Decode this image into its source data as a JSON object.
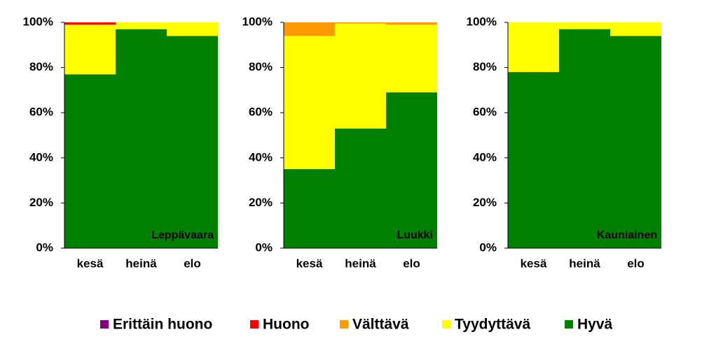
{
  "chart_data": [
    {
      "type": "stacked_bar",
      "label": "Leppävaara",
      "categories": [
        "kesä",
        "heinä",
        "elo"
      ],
      "series": [
        {
          "name": "Erittäin huono",
          "color": "#800080",
          "values": [
            0,
            0,
            0
          ]
        },
        {
          "name": "Huono",
          "color": "#ff0000",
          "values": [
            1,
            0,
            0
          ]
        },
        {
          "name": "Välttävä",
          "color": "#ff9900",
          "values": [
            0,
            0,
            0
          ]
        },
        {
          "name": "Tyydyttävä",
          "color": "#ffff00",
          "values": [
            22,
            3,
            6
          ]
        },
        {
          "name": "Hyvä",
          "color": "#008000",
          "values": [
            77,
            97,
            94
          ]
        }
      ],
      "ylim": [
        0,
        100
      ],
      "yticks": [
        {
          "value": 0,
          "label": "0%"
        },
        {
          "value": 20,
          "label": "20%"
        },
        {
          "value": 40,
          "label": "40%"
        },
        {
          "value": 60,
          "label": "60%"
        },
        {
          "value": 80,
          "label": "80%"
        },
        {
          "value": 100,
          "label": "100%"
        }
      ]
    },
    {
      "type": "stacked_bar",
      "label": "Luukki",
      "categories": [
        "kesä",
        "heinä",
        "elo"
      ],
      "series": [
        {
          "color": "#800080",
          "values": [
            0,
            0,
            0
          ]
        },
        {
          "color": "#ff0000",
          "values": [
            0,
            0,
            0
          ]
        },
        {
          "color": "#ff9900",
          "values": [
            6,
            0.5,
            1
          ]
        },
        {
          "color": "#ffff00",
          "values": [
            59,
            46.5,
            30
          ]
        },
        {
          "color": "#008000",
          "values": [
            35,
            53,
            69
          ]
        }
      ],
      "ylim": [
        0,
        100
      ],
      "yticks": [
        {
          "value": 0,
          "label": "0%"
        },
        {
          "value": 20,
          "label": "20%"
        },
        {
          "value": 40,
          "label": "40%"
        },
        {
          "value": 60,
          "label": "60%"
        },
        {
          "value": 80,
          "label": "80%"
        },
        {
          "value": 100,
          "label": "100%"
        }
      ]
    },
    {
      "type": "stacked_bar",
      "label": "Kauniainen",
      "categories": [
        "kesä",
        "heinä",
        "elo"
      ],
      "series": [
        {
          "color": "#800080",
          "values": [
            0,
            0,
            0
          ]
        },
        {
          "color": "#ff0000",
          "values": [
            0,
            0,
            0
          ]
        },
        {
          "color": "#ff9900",
          "values": [
            0,
            0,
            0
          ]
        },
        {
          "color": "#ffff00",
          "values": [
            22,
            3,
            6
          ]
        },
        {
          "color": "#008000",
          "values": [
            78,
            97,
            94
          ]
        }
      ],
      "ylim": [
        0,
        100
      ],
      "yticks": [
        {
          "value": 0,
          "label": "0%"
        },
        {
          "value": 20,
          "label": "20%"
        },
        {
          "value": 40,
          "label": "40%"
        },
        {
          "value": 60,
          "label": "60%"
        },
        {
          "value": 80,
          "label": "80%"
        },
        {
          "value": 100,
          "label": "100%"
        }
      ]
    }
  ]
}
